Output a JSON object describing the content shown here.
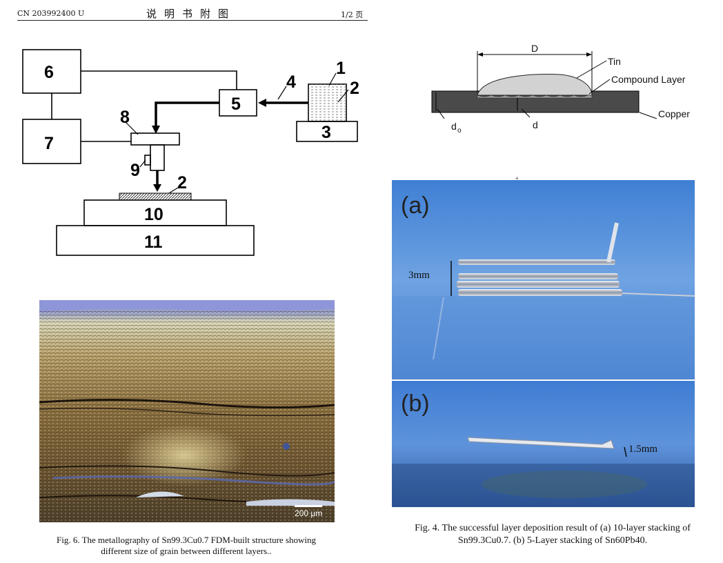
{
  "header": {
    "doc_number": "CN 203992400 U",
    "title": "说明书附图",
    "page": "1/2 页"
  },
  "diagram1": {
    "labels": {
      "n1": "1",
      "n2a": "2",
      "n2b": "2",
      "n3": "3",
      "n4": "4",
      "n5": "5",
      "n6": "6",
      "n7": "7",
      "n8": "8",
      "n9": "9",
      "n10": "10",
      "n11": "11"
    }
  },
  "diagram2": {
    "labels": {
      "D": "D",
      "tin": "Tin",
      "compound": "Compound Layer",
      "copper": "Copper",
      "d0": "d",
      "d0_sub": "o",
      "d": "d",
      "dot": "+"
    }
  },
  "micrograph": {
    "scale_label": "200 μm"
  },
  "fig6": {
    "caption_line1": "Fig. 6. The metallography of Sn99.3Cu0.7 FDM-built structure showing",
    "caption_line2": "different size of grain between different layers.."
  },
  "photo_a": {
    "panel_label": "(a)",
    "dim_label": "3mm"
  },
  "photo_b": {
    "panel_label": "(b)",
    "dim_label": "1.5mm"
  },
  "fig4": {
    "caption_line1": "Fig. 4. The successful layer deposition result of (a) 10-layer stacking of",
    "caption_line2": "Sn99.3Cu0.7. (b) 5-Layer stacking of Sn60Pb40."
  },
  "colors": {
    "sky_blue": "#4a86d6",
    "metallograph_gold": "#a98a52",
    "copper_gray": "#4a4a4a"
  }
}
